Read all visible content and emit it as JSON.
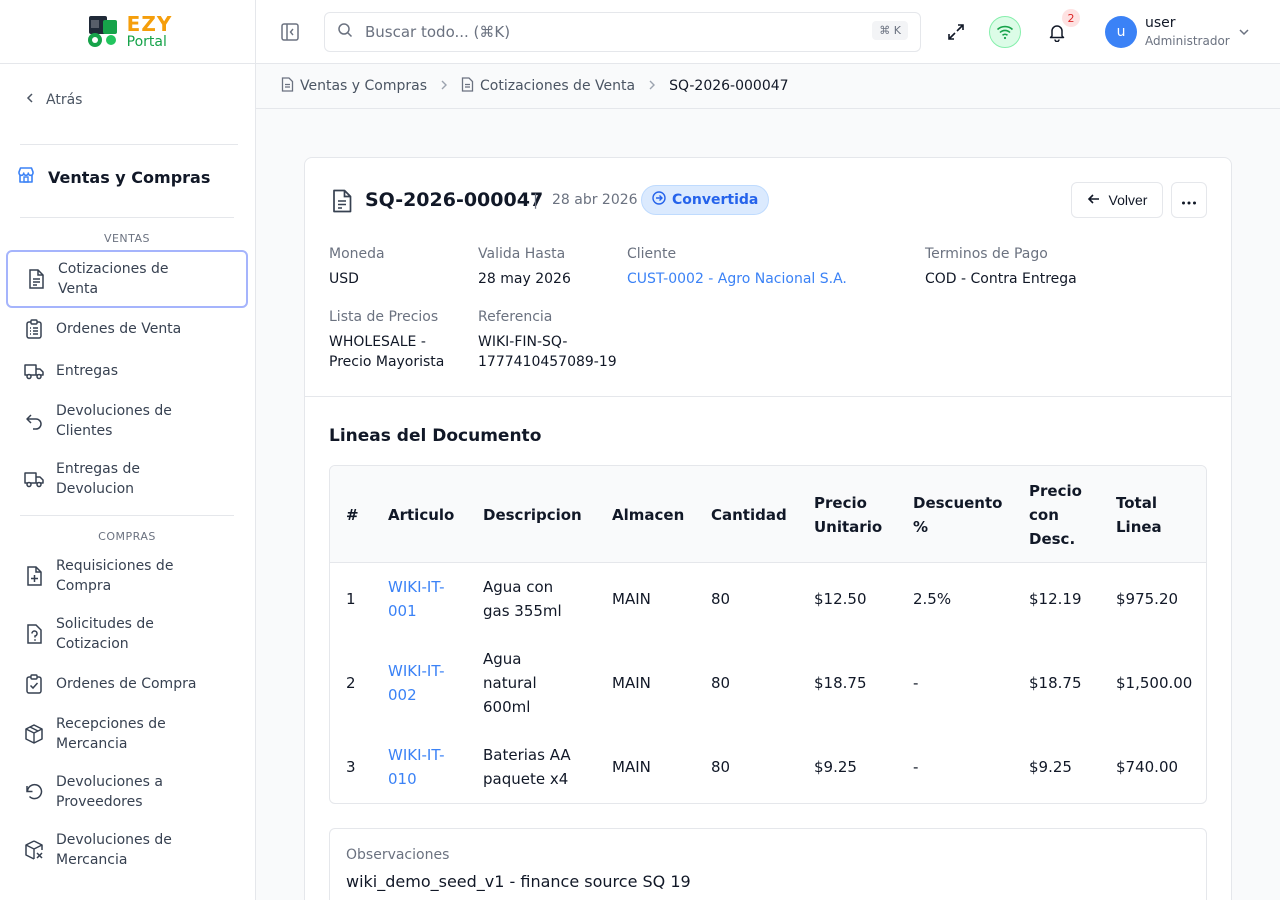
{
  "brand": {
    "name_top": "EZY",
    "name_bottom": "Portal"
  },
  "sidebar": {
    "back_label": "Atrás",
    "module_title": "Ventas y Compras",
    "sections": [
      {
        "label": "VENTAS",
        "items": [
          {
            "label": "Cotizaciones de Venta",
            "icon": "file-text-icon",
            "active": true
          },
          {
            "label": "Ordenes de Venta",
            "icon": "clipboard-list-icon"
          },
          {
            "label": "Entregas",
            "icon": "truck-icon"
          },
          {
            "label": "Devoluciones de Clientes",
            "icon": "undo-icon"
          },
          {
            "label": "Entregas de Devolucion",
            "icon": "truck-return-icon"
          }
        ]
      },
      {
        "label": "COMPRAS",
        "items": [
          {
            "label": "Requisiciones de Compra",
            "icon": "file-plus-icon"
          },
          {
            "label": "Solicitudes de Cotizacion",
            "icon": "file-question-icon"
          },
          {
            "label": "Ordenes de Compra",
            "icon": "clipboard-check-icon"
          },
          {
            "label": "Recepciones de Mercancia",
            "icon": "package-icon"
          },
          {
            "label": "Devoluciones a Proveedores",
            "icon": "rotate-ccw-icon"
          },
          {
            "label": "Devoluciones de Mercancia",
            "icon": "package-x-icon"
          }
        ]
      }
    ]
  },
  "header": {
    "search_placeholder": "Buscar todo... (⌘K)",
    "search_shortcut": "⌘ K",
    "notifications_count": "2",
    "user": {
      "initial": "u",
      "name": "user",
      "role": "Administrador"
    }
  },
  "breadcrumb": [
    {
      "label": "Ventas y Compras"
    },
    {
      "label": "Cotizaciones de Venta"
    },
    {
      "label": "SQ-2026-000047"
    }
  ],
  "document": {
    "number": "SQ-2026-000047",
    "separator": "|",
    "date": "28 abr 2026",
    "status": "Convertida",
    "back_button": "Volver",
    "fields": {
      "moneda": {
        "label": "Moneda",
        "value": "USD"
      },
      "valida_hasta": {
        "label": "Valida Hasta",
        "value": "28 may 2026"
      },
      "cliente": {
        "label": "Cliente",
        "value": "CUST-0002 - Agro Nacional S.A."
      },
      "terminos": {
        "label": "Terminos de Pago",
        "value": "COD - Contra Entrega"
      },
      "lista_precios": {
        "label": "Lista de Precios",
        "value_line1": "WHOLESALE -",
        "value_line2": "Precio Mayorista"
      },
      "referencia": {
        "label": "Referencia",
        "value_line1": "WIKI-FIN-SQ-",
        "value_line2": "1777410457089-19"
      }
    },
    "lines_title": "Lineas del Documento",
    "table": {
      "headers": {
        "num": "#",
        "articulo": "Articulo",
        "descripcion": "Descripcion",
        "almacen": "Almacen",
        "cantidad": "Cantidad",
        "precio_1": "Precio",
        "precio_2": "Unitario",
        "descuento_1": "Descuento",
        "descuento_2": "%",
        "pcd_1": "Precio",
        "pcd_2": "con",
        "pcd_3": "Desc.",
        "total_1": "Total",
        "total_2": "Linea"
      },
      "rows": [
        {
          "num": "1",
          "art_1": "WIKI-IT-",
          "art_2": "001",
          "desc_1": "Agua con",
          "desc_2": "gas 355ml",
          "desc_3": "",
          "almacen": "MAIN",
          "cantidad": "80",
          "precio": "$12.50",
          "descuento": "2.5%",
          "precio_desc": "$12.19",
          "total": "$975.20"
        },
        {
          "num": "2",
          "art_1": "WIKI-IT-",
          "art_2": "002",
          "desc_1": "Agua",
          "desc_2": "natural",
          "desc_3": "600ml",
          "almacen": "MAIN",
          "cantidad": "80",
          "precio": "$18.75",
          "descuento": "-",
          "precio_desc": "$18.75",
          "total": "$1,500.00"
        },
        {
          "num": "3",
          "art_1": "WIKI-IT-",
          "art_2": "010",
          "desc_1": "Baterias AA",
          "desc_2": "paquete x4",
          "desc_3": "",
          "almacen": "MAIN",
          "cantidad": "80",
          "precio": "$9.25",
          "descuento": "-",
          "precio_desc": "$9.25",
          "total": "$740.00"
        }
      ]
    },
    "observaciones": {
      "label": "Observaciones",
      "value": "wiki_demo_seed_v1 - finance source SQ 19"
    }
  },
  "colors": {
    "accent": "#3b82f6",
    "active_border": "#a5b4fc",
    "badge_bg": "#dbeafe"
  }
}
